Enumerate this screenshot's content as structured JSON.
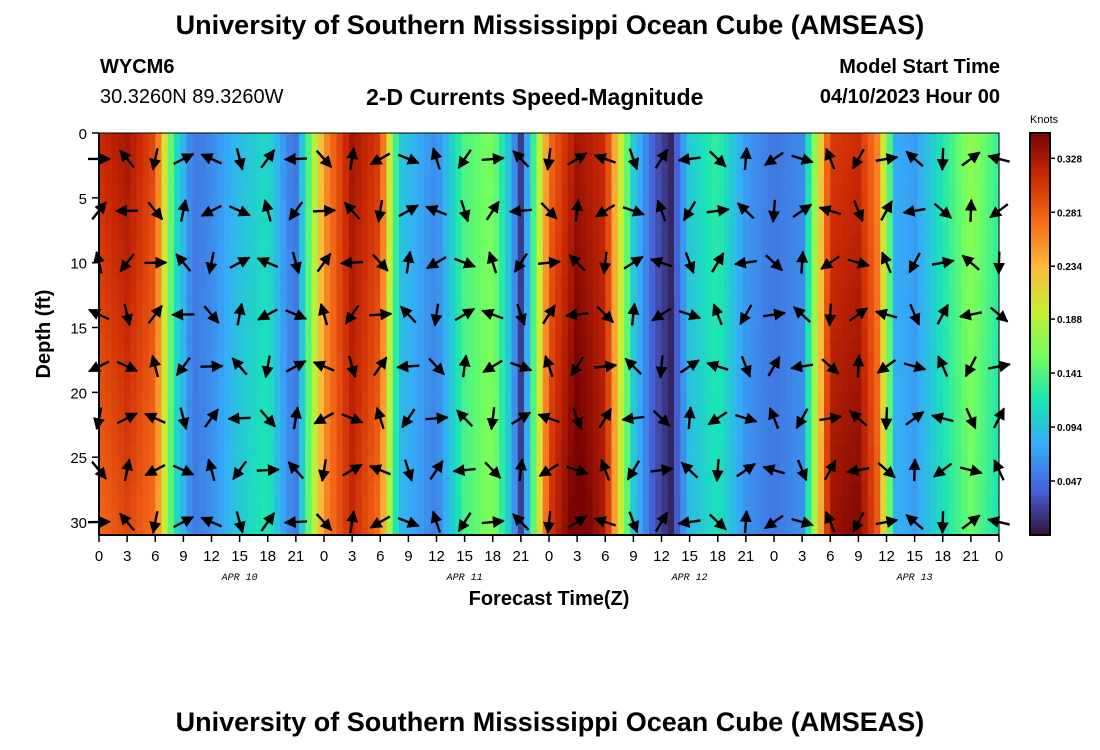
{
  "header": {
    "title": "University of Southern Mississippi Ocean Cube (AMSEAS)",
    "station": "WYCM6",
    "coords": "30.3260N  89.3260W",
    "subtitle": "2-D Currents Speed-Magnitude",
    "start_label": "Model Start Time",
    "start_value": "04/10/2023 Hour 00"
  },
  "footer": {
    "title": "University of Southern Mississippi Ocean Cube (AMSEAS)"
  },
  "colors": {
    "stops": [
      "#30123b",
      "#4662d7",
      "#36aaf9",
      "#1ae4b6",
      "#72fe5e",
      "#c7ef34",
      "#faba39",
      "#f66b19",
      "#cb2a04",
      "#7a0403"
    ]
  },
  "chart_data": {
    "type": "heatmap",
    "title": "2-D Currents Speed-Magnitude",
    "xlabel": "Forecast Time(Z)",
    "ylabel": "Depth (ft)",
    "x_ticks": [
      "0",
      "3",
      "6",
      "9",
      "12",
      "15",
      "18",
      "21",
      "0",
      "3",
      "6",
      "9",
      "12",
      "15",
      "18",
      "21",
      "0",
      "3",
      "6",
      "9",
      "12",
      "15",
      "18",
      "21",
      "0",
      "3",
      "6",
      "9",
      "12",
      "15",
      "18",
      "21",
      "0"
    ],
    "day_labels": [
      {
        "label": "APR 10",
        "hour": 15
      },
      {
        "label": "APR 11",
        "hour": 39
      },
      {
        "label": "APR 12",
        "hour": 63
      },
      {
        "label": "APR 13",
        "hour": 87
      }
    ],
    "xlim": [
      0,
      96
    ],
    "ylim": [
      0,
      31
    ],
    "y_ticks": [
      "0",
      "5",
      "10",
      "15",
      "20",
      "25",
      "30"
    ],
    "colorbar": {
      "unit": "Knots",
      "ticks": [
        "0.328",
        "0.281",
        "0.234",
        "0.188",
        "0.141",
        "0.094",
        "0.047"
      ],
      "tick_values": [
        0.328,
        0.281,
        0.234,
        0.188,
        0.141,
        0.094,
        0.047
      ],
      "range": [
        0.0,
        0.35
      ]
    },
    "speed_profile_hours": [
      0,
      3,
      6,
      8,
      10,
      12,
      15,
      18,
      20,
      21,
      24,
      27,
      30,
      32,
      34,
      36,
      39,
      42,
      44,
      45,
      48,
      51,
      54,
      57,
      59,
      61,
      63,
      66,
      69,
      72,
      75,
      78,
      81,
      83,
      85,
      87,
      90,
      93,
      96
    ],
    "speed_profile_knots": [
      0.31,
      0.33,
      0.29,
      0.12,
      0.05,
      0.06,
      0.09,
      0.11,
      0.06,
      0.05,
      0.25,
      0.33,
      0.3,
      0.1,
      0.08,
      0.06,
      0.14,
      0.16,
      0.08,
      0.02,
      0.27,
      0.33,
      0.31,
      0.1,
      0.04,
      0.01,
      0.1,
      0.13,
      0.07,
      0.05,
      0.06,
      0.3,
      0.31,
      0.26,
      0.08,
      0.07,
      0.12,
      0.17,
      0.13
    ],
    "arrow_spacing_hours": 3,
    "arrow_depths_ft": [
      2,
      6,
      10,
      14,
      18,
      22,
      26,
      30
    ]
  }
}
